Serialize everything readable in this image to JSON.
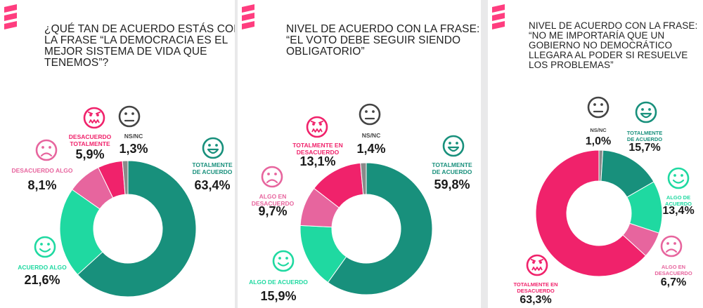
{
  "colors": {
    "dark_green": "#18907c",
    "light_green": "#1fd9a1",
    "pink": "#e7659e",
    "magenta": "#f0226b",
    "gray": "#8a8a8a",
    "logo": "#ff3d7f"
  },
  "chart_data": [
    {
      "type": "pie",
      "title_lines": [
        "¿QUÉ TAN DE ACUERDO ESTÁS CON",
        "LA FRASE “LA DEMOCRACIA ES EL",
        "MEJOR SISTEMA DE VIDA QUE",
        "TENEMOS”?"
      ],
      "slices": [
        {
          "label_lines": [
            "TOTALMENTE",
            "DE ACUERDO"
          ],
          "value": 63.4,
          "value_text": "63,4%",
          "color": "#18907c",
          "icon": "happy-face-icon"
        },
        {
          "label_lines": [
            "ACUERDO ALGO"
          ],
          "value": 21.6,
          "value_text": "21,6%",
          "color": "#1fd9a1",
          "icon": "smile-face-icon"
        },
        {
          "label_lines": [
            "DESACUERDO ALGO"
          ],
          "value": 8.1,
          "value_text": "8,1%",
          "color": "#e7659e",
          "icon": "sad-face-icon"
        },
        {
          "label_lines": [
            "DESACUERDO",
            "TOTALMENTE"
          ],
          "value": 5.9,
          "value_text": "5,9%",
          "color": "#f0226b",
          "icon": "angry-face-icon"
        },
        {
          "label_lines": [
            "NS/NC"
          ],
          "value": 1.3,
          "value_text": "1,3%",
          "color": "#8a8a8a",
          "icon": "neutral-face-icon"
        }
      ]
    },
    {
      "type": "pie",
      "title_lines": [
        "NIVEL DE ACUERDO CON LA FRASE:",
        "“EL VOTO DEBE SEGUIR SIENDO",
        "OBLIGATORIO”"
      ],
      "slices": [
        {
          "label_lines": [
            "TOTALMENTE",
            "DE ACUERDO"
          ],
          "value": 59.8,
          "value_text": "59,8%",
          "color": "#18907c",
          "icon": "happy-face-icon"
        },
        {
          "label_lines": [
            "ALGO DE ACUERDO"
          ],
          "value": 15.9,
          "value_text": "15,9%",
          "color": "#1fd9a1",
          "icon": "smile-face-icon"
        },
        {
          "label_lines": [
            "ALGO EN",
            "DESACUERDO"
          ],
          "value": 9.7,
          "value_text": "9,7%",
          "color": "#e7659e",
          "icon": "sad-face-icon"
        },
        {
          "label_lines": [
            "TOTALMENTE EN",
            "DESACUERDO"
          ],
          "value": 13.1,
          "value_text": "13,1%",
          "color": "#f0226b",
          "icon": "angry-face-icon"
        },
        {
          "label_lines": [
            "NS/NC"
          ],
          "value": 1.4,
          "value_text": "1,4%",
          "color": "#8a8a8a",
          "icon": "neutral-face-icon"
        }
      ]
    },
    {
      "type": "pie",
      "title_lines": [
        "NIVEL DE ACUERDO CON LA FRASE:",
        "“NO ME IMPORTARÍA QUE UN",
        "GOBIERNO NO DEMOCRÁTICO",
        "LLEGARA AL PODER SI RESUELVE",
        "LOS PROBLEMAS”"
      ],
      "slices": [
        {
          "label_lines": [
            "TOTALMENTE",
            "DE ACUERDO"
          ],
          "value": 15.7,
          "value_text": "15,7%",
          "color": "#18907c",
          "icon": "happy-face-icon"
        },
        {
          "label_lines": [
            "ALGO DE",
            "ACUERDO"
          ],
          "value": 13.4,
          "value_text": "13,4%",
          "color": "#1fd9a1",
          "icon": "smile-face-icon"
        },
        {
          "label_lines": [
            "ALGO EN",
            "DESACUERDO"
          ],
          "value": 6.7,
          "value_text": "6,7%",
          "color": "#e7659e",
          "icon": "sad-face-icon"
        },
        {
          "label_lines": [
            "TOTALMENTE EN",
            "DESACUERDO"
          ],
          "value": 63.3,
          "value_text": "63,3%",
          "color": "#f0226b",
          "icon": "angry-face-icon"
        },
        {
          "label_lines": [
            "NS/NC"
          ],
          "value": 1.0,
          "value_text": "1,0%",
          "color": "#8a8a8a",
          "icon": "neutral-face-icon"
        }
      ]
    }
  ]
}
